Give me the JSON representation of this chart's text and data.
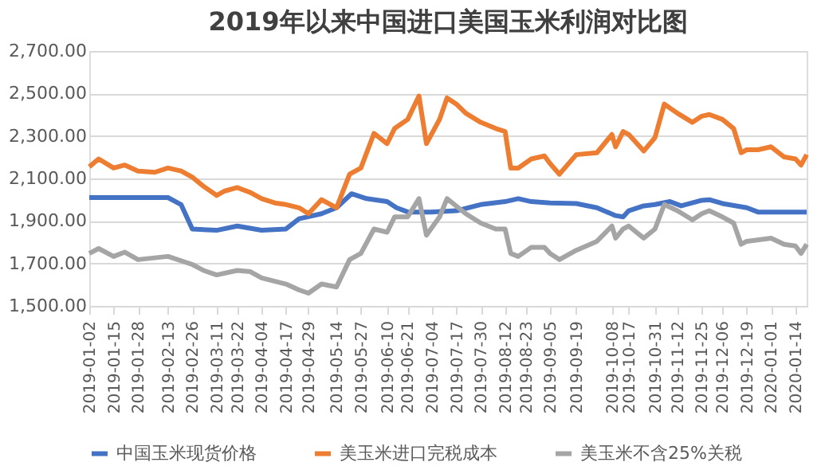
{
  "chart_data": {
    "type": "line",
    "title": "2019年以来中国进口美国玉米利润对比图",
    "xlim": [
      "2019-01-02",
      "2020-01-20"
    ],
    "xticks": [
      "2019-01-02",
      "2019-01-15",
      "2019-01-28",
      "2019-02-13",
      "2019-02-26",
      "2019-03-11",
      "2019-03-22",
      "2019-04-04",
      "2019-04-17",
      "2019-04-29",
      "2019-05-14",
      "2019-05-27",
      "2019-06-10",
      "2019-06-21",
      "2019-07-04",
      "2019-07-17",
      "2019-07-30",
      "2019-08-12",
      "2019-08-23",
      "2019-09-05",
      "2019-09-19",
      "2019-10-08",
      "2019-10-17",
      "2019-10-31",
      "2019-11-12",
      "2019-11-25",
      "2019-12-06",
      "2019-12-19",
      "2020-01-01",
      "2020-01-14"
    ],
    "ylim": [
      1500,
      2700
    ],
    "yticks": [
      {
        "value": 1500,
        "label": "1,500.00"
      },
      {
        "value": 1700,
        "label": "1,700.00"
      },
      {
        "value": 1900,
        "label": "1,900.00"
      },
      {
        "value": 2100,
        "label": "2,100.00"
      },
      {
        "value": 2300,
        "label": "2,300.00"
      },
      {
        "value": 2500,
        "label": "2,500.00"
      },
      {
        "value": 2700,
        "label": "2,700.00"
      }
    ],
    "grid": "y",
    "legend": "bottom",
    "marker": "none",
    "line_style": "solid",
    "series": [
      {
        "name": "中国玉米现货价格",
        "color": "#4472c4",
        "x": [
          "2019-01-02",
          "2019-02-13",
          "2019-02-20",
          "2019-02-26",
          "2019-03-11",
          "2019-03-22",
          "2019-04-04",
          "2019-04-17",
          "2019-04-24",
          "2019-05-06",
          "2019-05-14",
          "2019-05-22",
          "2019-05-30",
          "2019-06-10",
          "2019-06-15",
          "2019-06-21",
          "2019-07-03",
          "2019-07-17",
          "2019-07-30",
          "2019-08-12",
          "2019-08-19",
          "2019-08-26",
          "2019-09-05",
          "2019-09-19",
          "2019-09-30",
          "2019-10-10",
          "2019-10-14",
          "2019-10-17",
          "2019-10-25",
          "2019-10-31",
          "2019-11-08",
          "2019-11-14",
          "2019-11-25",
          "2019-11-29",
          "2019-12-06",
          "2019-12-19",
          "2019-12-25",
          "2020-01-20"
        ],
        "values": [
          2010,
          2010,
          1977,
          1862,
          1856,
          1876,
          1856,
          1862,
          1910,
          1934,
          1962,
          2028,
          2005,
          1991,
          1962,
          1942,
          1942,
          1948,
          1977,
          1991,
          2005,
          1991,
          1985,
          1982,
          1962,
          1925,
          1919,
          1948,
          1971,
          1977,
          1991,
          1971,
          1997,
          2000,
          1982,
          1962,
          1942,
          1942
        ]
      },
      {
        "name": "美玉米进口完税成本",
        "color": "#ed7d31",
        "x": [
          "2019-01-02",
          "2019-01-07",
          "2019-01-15",
          "2019-01-21",
          "2019-01-28",
          "2019-02-06",
          "2019-02-13",
          "2019-02-20",
          "2019-02-26",
          "2019-03-04",
          "2019-03-11",
          "2019-03-15",
          "2019-03-22",
          "2019-03-29",
          "2019-04-04",
          "2019-04-11",
          "2019-04-17",
          "2019-04-24",
          "2019-04-29",
          "2019-05-06",
          "2019-05-14",
          "2019-05-21",
          "2019-05-27",
          "2019-06-03",
          "2019-06-10",
          "2019-06-14",
          "2019-06-21",
          "2019-06-27",
          "2019-07-01",
          "2019-07-08",
          "2019-07-12",
          "2019-07-17",
          "2019-07-22",
          "2019-07-30",
          "2019-08-07",
          "2019-08-12",
          "2019-08-15",
          "2019-08-19",
          "2019-08-26",
          "2019-09-02",
          "2019-09-05",
          "2019-09-10",
          "2019-09-19",
          "2019-09-30",
          "2019-10-08",
          "2019-10-10",
          "2019-10-14",
          "2019-10-17",
          "2019-10-25",
          "2019-10-31",
          "2019-11-05",
          "2019-11-12",
          "2019-11-20",
          "2019-11-25",
          "2019-11-29",
          "2019-12-06",
          "2019-12-12",
          "2019-12-16",
          "2019-12-19",
          "2019-12-25",
          "2020-01-01",
          "2020-01-08",
          "2020-01-14",
          "2020-01-17",
          "2020-01-20"
        ],
        "values": [
          2155,
          2192,
          2149,
          2163,
          2135,
          2129,
          2149,
          2135,
          2106,
          2063,
          2020,
          2040,
          2057,
          2034,
          2005,
          1985,
          1977,
          1962,
          1934,
          2000,
          1962,
          2120,
          2149,
          2312,
          2264,
          2335,
          2378,
          2488,
          2264,
          2378,
          2479,
          2450,
          2407,
          2364,
          2335,
          2321,
          2149,
          2149,
          2192,
          2206,
          2170,
          2120,
          2212,
          2221,
          2307,
          2249,
          2321,
          2307,
          2229,
          2292,
          2450,
          2407,
          2364,
          2393,
          2401,
          2378,
          2335,
          2221,
          2235,
          2235,
          2249,
          2201,
          2192,
          2163,
          2212
        ]
      },
      {
        "name": "美玉米不含25%关税",
        "color": "#a5a5a5",
        "x": [
          "2019-01-02",
          "2019-01-07",
          "2019-01-15",
          "2019-01-21",
          "2019-01-28",
          "2019-02-13",
          "2019-02-26",
          "2019-03-04",
          "2019-03-11",
          "2019-03-22",
          "2019-03-29",
          "2019-04-04",
          "2019-04-17",
          "2019-04-24",
          "2019-04-29",
          "2019-05-06",
          "2019-05-14",
          "2019-05-21",
          "2019-05-27",
          "2019-06-03",
          "2019-06-10",
          "2019-06-14",
          "2019-06-21",
          "2019-06-27",
          "2019-07-01",
          "2019-07-08",
          "2019-07-12",
          "2019-07-22",
          "2019-07-30",
          "2019-08-07",
          "2019-08-12",
          "2019-08-15",
          "2019-08-19",
          "2019-08-26",
          "2019-09-02",
          "2019-09-05",
          "2019-09-10",
          "2019-09-19",
          "2019-09-30",
          "2019-10-08",
          "2019-10-10",
          "2019-10-14",
          "2019-10-17",
          "2019-10-25",
          "2019-10-31",
          "2019-11-05",
          "2019-11-12",
          "2019-11-20",
          "2019-11-25",
          "2019-11-29",
          "2019-12-06",
          "2019-12-12",
          "2019-12-16",
          "2019-12-19",
          "2020-01-01",
          "2020-01-08",
          "2020-01-14",
          "2020-01-17",
          "2020-01-20"
        ],
        "values": [
          1747,
          1770,
          1733,
          1753,
          1718,
          1733,
          1695,
          1667,
          1646,
          1667,
          1661,
          1632,
          1603,
          1575,
          1560,
          1603,
          1589,
          1718,
          1747,
          1862,
          1847,
          1919,
          1919,
          2005,
          1833,
          1919,
          2005,
          1934,
          1890,
          1862,
          1862,
          1747,
          1733,
          1776,
          1776,
          1747,
          1718,
          1762,
          1804,
          1876,
          1819,
          1862,
          1876,
          1819,
          1862,
          1977,
          1948,
          1905,
          1934,
          1948,
          1919,
          1890,
          1790,
          1804,
          1819,
          1790,
          1782,
          1747,
          1790
        ]
      }
    ]
  }
}
